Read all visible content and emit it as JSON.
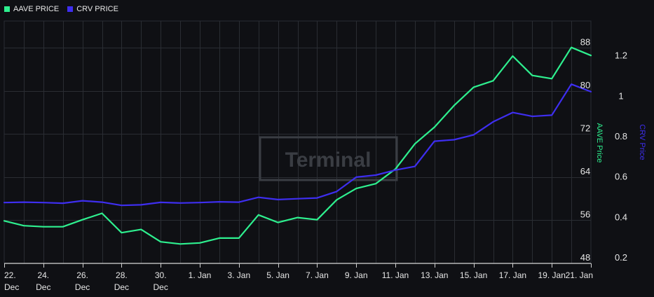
{
  "colors": {
    "aave": "#2ef08f",
    "crv": "#3e2ef0",
    "grid": "#2a2d33",
    "background": "#0f1014"
  },
  "watermark": {
    "text": "Terminal"
  },
  "chart_data": {
    "type": "line",
    "x": [
      "22 Dec",
      "23 Dec",
      "24 Dec",
      "25 Dec",
      "26 Dec",
      "27 Dec",
      "28 Dec",
      "29 Dec",
      "30 Dec",
      "31 Dec",
      "1 Jan",
      "2 Jan",
      "3 Jan",
      "4 Jan",
      "5 Jan",
      "6 Jan",
      "7 Jan",
      "8 Jan",
      "9 Jan",
      "10 Jan",
      "11 Jan",
      "12 Jan",
      "13 Jan",
      "14 Jan",
      "15 Jan",
      "16 Jan",
      "17 Jan",
      "18 Jan",
      "19 Jan",
      "20 Jan",
      "21 Jan"
    ],
    "x_ticks": [
      {
        "line1": "22.",
        "line2": "Dec"
      },
      {
        "line1": "24.",
        "line2": "Dec"
      },
      {
        "line1": "26.",
        "line2": "Dec"
      },
      {
        "line1": "28.",
        "line2": "Dec"
      },
      {
        "line1": "30.",
        "line2": "Dec"
      },
      {
        "line1": "1. Jan",
        "line2": ""
      },
      {
        "line1": "3. Jan",
        "line2": ""
      },
      {
        "line1": "5. Jan",
        "line2": ""
      },
      {
        "line1": "7. Jan",
        "line2": ""
      },
      {
        "line1": "9. Jan",
        "line2": ""
      },
      {
        "line1": "11. Jan",
        "line2": ""
      },
      {
        "line1": "13. Jan",
        "line2": ""
      },
      {
        "line1": "15. Jan",
        "line2": ""
      },
      {
        "line1": "17. Jan",
        "line2": ""
      },
      {
        "line1": "19. Jan",
        "line2": ""
      },
      {
        "line1": "21. Jan",
        "line2": ""
      }
    ],
    "series": [
      {
        "name": "AAVE PRICE",
        "axis": "left",
        "values": [
          55.9,
          55.0,
          54.8,
          54.8,
          56.1,
          57.3,
          53.7,
          54.3,
          52.0,
          51.6,
          51.8,
          52.7,
          52.7,
          57.0,
          55.6,
          56.5,
          56.1,
          59.8,
          61.9,
          62.8,
          65.5,
          70.2,
          73.3,
          77.3,
          80.7,
          81.9,
          86.5,
          82.9,
          82.3,
          88.1,
          86.6
        ]
      },
      {
        "name": "CRV PRICE",
        "axis": "right",
        "values": [
          0.501,
          0.503,
          0.501,
          0.498,
          0.51,
          0.503,
          0.487,
          0.49,
          0.502,
          0.499,
          0.501,
          0.505,
          0.503,
          0.527,
          0.516,
          0.52,
          0.524,
          0.556,
          0.627,
          0.637,
          0.662,
          0.68,
          0.805,
          0.812,
          0.836,
          0.901,
          0.947,
          0.928,
          0.934,
          1.087,
          1.05
        ]
      }
    ],
    "axes": {
      "left": {
        "label": "AAVE Price",
        "ticks": [
          "48",
          "56",
          "64",
          "72",
          "80",
          "88"
        ],
        "range": [
          48,
          93
        ]
      },
      "right": {
        "label": "CRV Price",
        "ticks": [
          "0.2",
          "0.4",
          "0.6",
          "0.8",
          "1",
          "1.2"
        ],
        "range": [
          0.2,
          1.4
        ]
      }
    },
    "grid": true,
    "legend": "top-left"
  }
}
